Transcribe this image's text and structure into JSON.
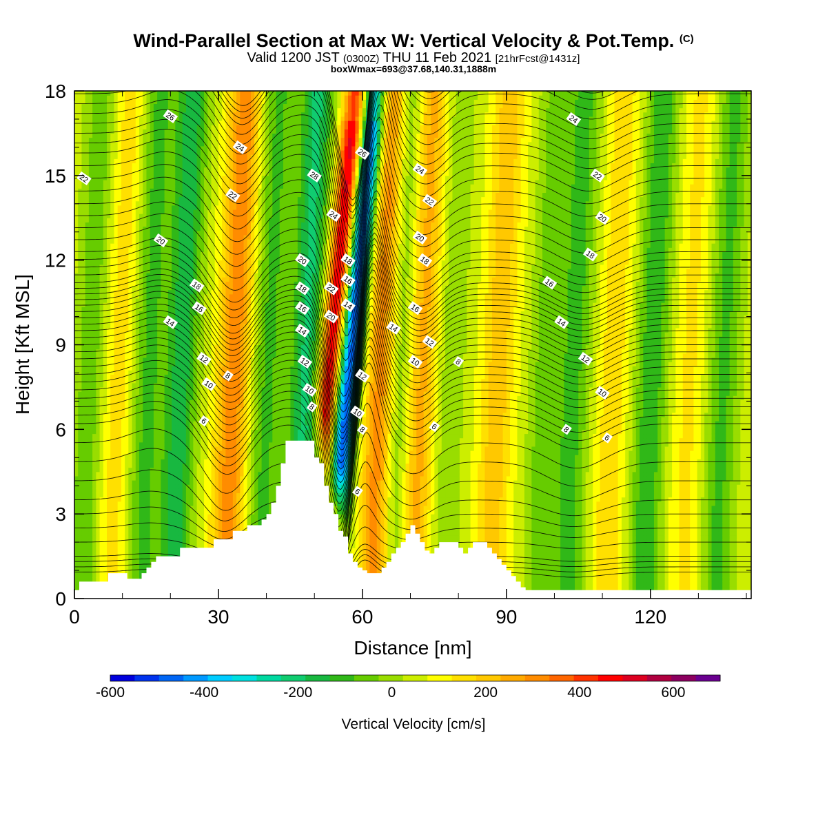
{
  "header": {
    "title": "Wind-Parallel Section at Max W: Vertical Velocity & Pot.Temp.",
    "copyright": "(C)",
    "valid_prefix": "Valid 1200 JST",
    "valid_utc": "(0300Z)",
    "valid_date": "THU 11 Feb 2021",
    "forecast": "[21hrFcst@1431z]",
    "box_info": "boxWmax=693@37.68,140.31,1888m"
  },
  "chart_data": {
    "type": "heatmap",
    "title": "Wind-Parallel Section at Max W: Vertical Velocity & Pot.Temp.",
    "xlabel": "Distance [nm]",
    "ylabel": "Height [Kft MSL]",
    "xlim": [
      0,
      141
    ],
    "ylim": [
      0,
      18
    ],
    "x_ticks": [
      0,
      30,
      60,
      90,
      120
    ],
    "y_ticks": [
      0,
      3,
      6,
      9,
      12,
      15,
      18
    ],
    "colorbar": {
      "label": "Vertical Velocity [cm/s]",
      "range": [
        -600,
        700
      ],
      "step": 50,
      "tick_values": [
        -600,
        -400,
        -200,
        0,
        200,
        400,
        600
      ],
      "colors": [
        "#0000dd",
        "#0033ee",
        "#0066f5",
        "#0099ff",
        "#00ccff",
        "#00e0e0",
        "#00d8a0",
        "#10cc70",
        "#18b840",
        "#30b818",
        "#66cc00",
        "#99dd00",
        "#ccee00",
        "#ffff00",
        "#ffe000",
        "#ffc800",
        "#ffaa00",
        "#ff8c00",
        "#ff6600",
        "#ff3300",
        "#ff0000",
        "#dd0020",
        "#b00040",
        "#8c0060",
        "#6a0090"
      ]
    },
    "terrain_kft": [
      [
        0,
        0.3
      ],
      [
        1,
        0.6
      ],
      [
        5,
        0.6
      ],
      [
        7,
        0.9
      ],
      [
        10,
        0.9
      ],
      [
        11,
        0.7
      ],
      [
        13,
        0.7
      ],
      [
        14,
        0.9
      ],
      [
        15,
        1.1
      ],
      [
        16,
        1.3
      ],
      [
        17,
        1.5
      ],
      [
        21,
        1.5
      ],
      [
        22,
        1.8
      ],
      [
        28,
        1.8
      ],
      [
        29,
        2.1
      ],
      [
        31,
        2.1
      ],
      [
        33,
        2.4
      ],
      [
        35,
        2.4
      ],
      [
        36,
        2.6
      ],
      [
        38,
        2.6
      ],
      [
        39,
        2.8
      ],
      [
        40,
        3.0
      ],
      [
        41,
        3.4
      ],
      [
        42,
        4.0
      ],
      [
        43,
        4.8
      ],
      [
        44,
        5.6
      ],
      [
        49,
        5.6
      ],
      [
        50,
        5.0
      ],
      [
        51,
        4.8
      ],
      [
        52,
        4.0
      ],
      [
        53,
        3.4
      ],
      [
        54,
        3.0
      ],
      [
        55,
        2.4
      ],
      [
        56,
        2.2
      ],
      [
        57,
        1.6
      ],
      [
        58,
        1.3
      ],
      [
        59,
        1.1
      ],
      [
        60,
        1.0
      ],
      [
        61,
        0.9
      ],
      [
        64,
        1.1
      ],
      [
        65,
        1.3
      ],
      [
        66,
        1.6
      ],
      [
        67,
        1.8
      ],
      [
        68,
        2.0
      ],
      [
        69,
        2.3
      ],
      [
        70,
        2.6
      ],
      [
        71,
        2.3
      ],
      [
        72,
        2.0
      ],
      [
        73,
        1.7
      ],
      [
        74,
        1.6
      ],
      [
        75,
        1.8
      ],
      [
        76,
        2.0
      ],
      [
        79,
        2.0
      ],
      [
        80,
        1.8
      ],
      [
        81,
        1.6
      ],
      [
        82,
        1.8
      ],
      [
        83,
        2.0
      ],
      [
        85,
        2.0
      ],
      [
        86,
        1.8
      ],
      [
        87,
        1.6
      ],
      [
        88,
        1.4
      ],
      [
        89,
        1.2
      ],
      [
        90,
        1.0
      ],
      [
        91,
        0.8
      ],
      [
        92,
        0.6
      ],
      [
        93,
        0.4
      ],
      [
        94,
        0.3
      ],
      [
        141,
        0.3
      ]
    ],
    "w_features_cm_s": [
      {
        "x_nm": 3,
        "w": -120
      },
      {
        "x_nm": 9,
        "w": 100
      },
      {
        "x_nm": 15,
        "w": -150
      },
      {
        "x_nm": 22,
        "w": -220
      },
      {
        "x_nm": 33,
        "w": 250
      },
      {
        "x_nm": 40,
        "w": -150
      },
      {
        "x_nm": 48,
        "w": -250
      },
      {
        "x_nm": 54,
        "w": 450
      },
      {
        "x_nm": 58,
        "w": -550
      },
      {
        "x_nm": 64,
        "w": 300
      },
      {
        "x_nm": 67,
        "w": -180
      },
      {
        "x_nm": 72,
        "w": 200
      },
      {
        "x_nm": 78,
        "w": -80
      },
      {
        "x_nm": 88,
        "w": 150
      },
      {
        "x_nm": 98,
        "w": -120
      },
      {
        "x_nm": 104,
        "w": -150
      },
      {
        "x_nm": 112,
        "w": 100
      },
      {
        "x_nm": 120,
        "w": -180
      },
      {
        "x_nm": 128,
        "w": 80
      },
      {
        "x_nm": 135,
        "w": -150
      }
    ],
    "theta_contour_labels": [
      {
        "x": 20,
        "y": 17.1,
        "text": "26"
      },
      {
        "x": 34.5,
        "y": 16.0,
        "text": "24"
      },
      {
        "x": 2,
        "y": 14.9,
        "text": "22"
      },
      {
        "x": 33,
        "y": 14.3,
        "text": "22"
      },
      {
        "x": 18,
        "y": 12.7,
        "text": "20"
      },
      {
        "x": 50,
        "y": 15.0,
        "text": "28"
      },
      {
        "x": 54,
        "y": 13.6,
        "text": "24"
      },
      {
        "x": 60,
        "y": 15.8,
        "text": "26"
      },
      {
        "x": 72,
        "y": 15.2,
        "text": "24"
      },
      {
        "x": 74,
        "y": 14.1,
        "text": "22"
      },
      {
        "x": 72,
        "y": 12.8,
        "text": "20"
      },
      {
        "x": 73,
        "y": 12.0,
        "text": "18"
      },
      {
        "x": 47.5,
        "y": 12.0,
        "text": "20"
      },
      {
        "x": 57,
        "y": 12.0,
        "text": "18"
      },
      {
        "x": 47.5,
        "y": 11.0,
        "text": "18"
      },
      {
        "x": 57,
        "y": 11.3,
        "text": "16"
      },
      {
        "x": 53.5,
        "y": 11.0,
        "text": "22"
      },
      {
        "x": 47.5,
        "y": 10.3,
        "text": "16"
      },
      {
        "x": 57,
        "y": 10.4,
        "text": "14"
      },
      {
        "x": 53.5,
        "y": 10.0,
        "text": "20"
      },
      {
        "x": 47.5,
        "y": 9.5,
        "text": "14"
      },
      {
        "x": 66.5,
        "y": 9.6,
        "text": "14"
      },
      {
        "x": 71,
        "y": 10.3,
        "text": "16"
      },
      {
        "x": 48,
        "y": 8.4,
        "text": "12"
      },
      {
        "x": 60,
        "y": 7.9,
        "text": "12"
      },
      {
        "x": 49,
        "y": 7.4,
        "text": "10"
      },
      {
        "x": 49.5,
        "y": 6.8,
        "text": "8"
      },
      {
        "x": 59,
        "y": 6.6,
        "text": "10"
      },
      {
        "x": 60,
        "y": 6.0,
        "text": "8"
      },
      {
        "x": 59,
        "y": 3.8,
        "text": "6"
      },
      {
        "x": 25.5,
        "y": 11.1,
        "text": "18"
      },
      {
        "x": 26,
        "y": 10.3,
        "text": "16"
      },
      {
        "x": 20,
        "y": 9.8,
        "text": "14"
      },
      {
        "x": 27,
        "y": 8.5,
        "text": "12"
      },
      {
        "x": 28,
        "y": 7.6,
        "text": "10"
      },
      {
        "x": 32,
        "y": 7.9,
        "text": "8"
      },
      {
        "x": 27,
        "y": 6.3,
        "text": "6"
      },
      {
        "x": 74,
        "y": 9.1,
        "text": "12"
      },
      {
        "x": 71,
        "y": 8.4,
        "text": "10"
      },
      {
        "x": 80,
        "y": 8.4,
        "text": "8"
      },
      {
        "x": 75,
        "y": 6.1,
        "text": "6"
      },
      {
        "x": 104,
        "y": 17.0,
        "text": "24"
      },
      {
        "x": 109,
        "y": 15.0,
        "text": "22"
      },
      {
        "x": 110,
        "y": 13.5,
        "text": "20"
      },
      {
        "x": 107.5,
        "y": 12.2,
        "text": "18"
      },
      {
        "x": 99,
        "y": 11.2,
        "text": "16"
      },
      {
        "x": 101.5,
        "y": 9.8,
        "text": "14"
      },
      {
        "x": 106.5,
        "y": 8.5,
        "text": "12"
      },
      {
        "x": 110,
        "y": 7.3,
        "text": "10"
      },
      {
        "x": 102.5,
        "y": 6.0,
        "text": "8"
      },
      {
        "x": 111,
        "y": 5.7,
        "text": "6"
      }
    ]
  }
}
